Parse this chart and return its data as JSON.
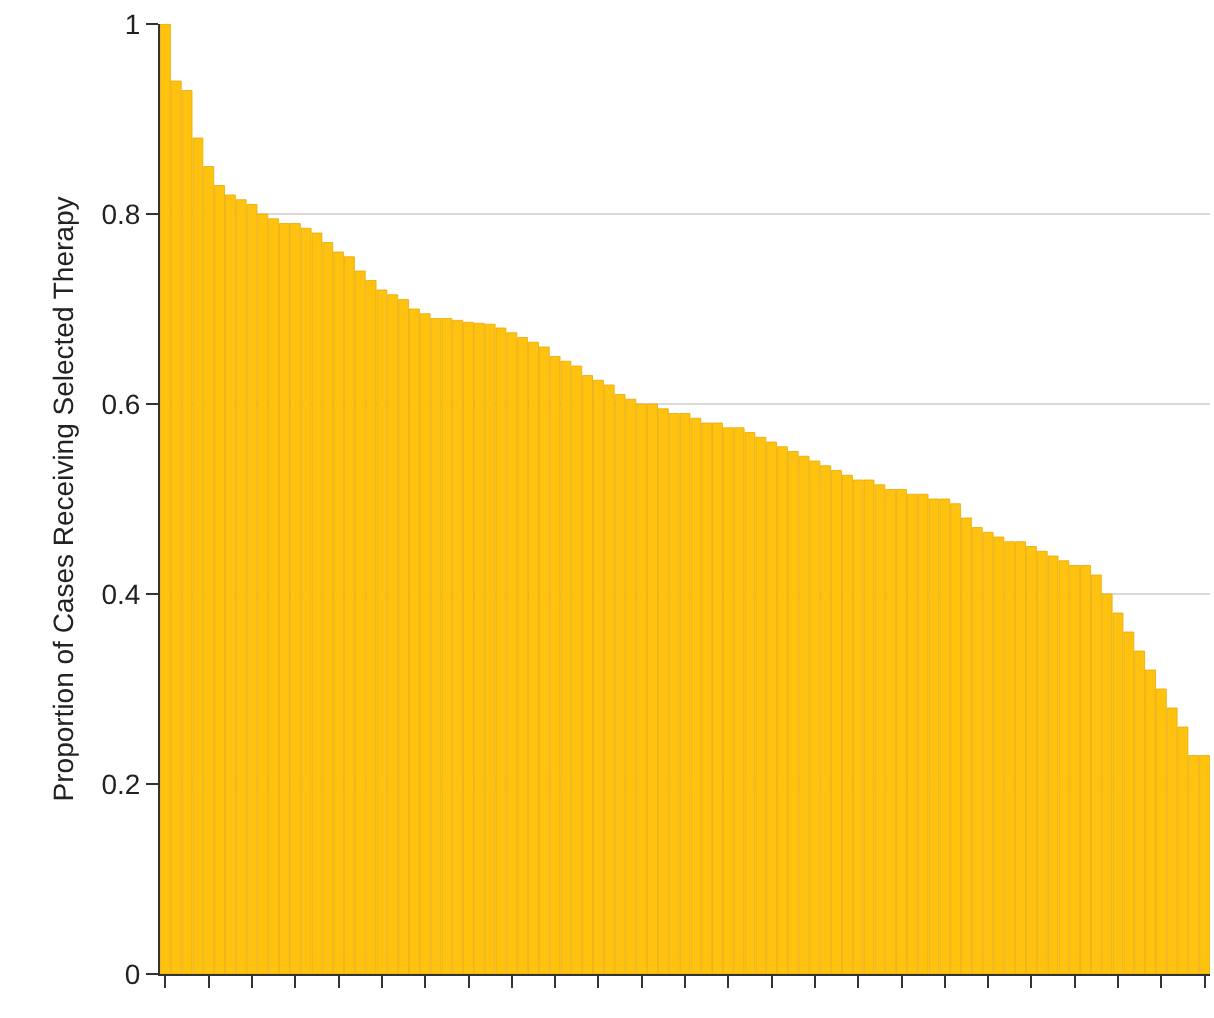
{
  "chart_data": {
    "type": "bar",
    "ylabel": "Proportion of Cases Receiving Selected Therapy",
    "categories": [
      null,
      null,
      null,
      null,
      null,
      null,
      null,
      null,
      null,
      null,
      null,
      null,
      null,
      null,
      null,
      null,
      null,
      null,
      null,
      null,
      null,
      null,
      null,
      null,
      null,
      null,
      null,
      null,
      null,
      null,
      null,
      null,
      null,
      null,
      null,
      null,
      null,
      null,
      null,
      null,
      null,
      null,
      null,
      null,
      null,
      null,
      null,
      null,
      null,
      null,
      null,
      null,
      null,
      null,
      null,
      null,
      null,
      null,
      null,
      null,
      null,
      null,
      null,
      null,
      null,
      null,
      null,
      null,
      null,
      null,
      null,
      null,
      null,
      null,
      null,
      null,
      null,
      null,
      null,
      null,
      null,
      null,
      null,
      null,
      null,
      null,
      null,
      null,
      null,
      null,
      null,
      null,
      null,
      null,
      null,
      null,
      null
    ],
    "values": [
      1.0,
      0.94,
      0.93,
      0.88,
      0.85,
      0.83,
      0.82,
      0.815,
      0.81,
      0.8,
      0.795,
      0.79,
      0.79,
      0.785,
      0.78,
      0.77,
      0.76,
      0.755,
      0.74,
      0.73,
      0.72,
      0.715,
      0.71,
      0.7,
      0.695,
      0.69,
      0.69,
      0.688,
      0.686,
      0.685,
      0.684,
      0.68,
      0.675,
      0.67,
      0.665,
      0.66,
      0.65,
      0.645,
      0.64,
      0.63,
      0.625,
      0.62,
      0.61,
      0.605,
      0.6,
      0.6,
      0.595,
      0.59,
      0.59,
      0.585,
      0.58,
      0.58,
      0.575,
      0.575,
      0.57,
      0.565,
      0.56,
      0.555,
      0.55,
      0.545,
      0.54,
      0.535,
      0.53,
      0.525,
      0.52,
      0.52,
      0.515,
      0.51,
      0.51,
      0.505,
      0.505,
      0.5,
      0.5,
      0.495,
      0.48,
      0.47,
      0.465,
      0.46,
      0.455,
      0.455,
      0.45,
      0.445,
      0.44,
      0.435,
      0.43,
      0.43,
      0.42,
      0.4,
      0.38,
      0.36,
      0.34,
      0.32,
      0.3,
      0.28,
      0.26,
      0.23,
      0.23
    ],
    "color": "#ffc20e",
    "ylim": [
      0,
      1
    ],
    "yticks": [
      0,
      0.2,
      0.4,
      0.6,
      0.8,
      1
    ],
    "grid": "y"
  }
}
